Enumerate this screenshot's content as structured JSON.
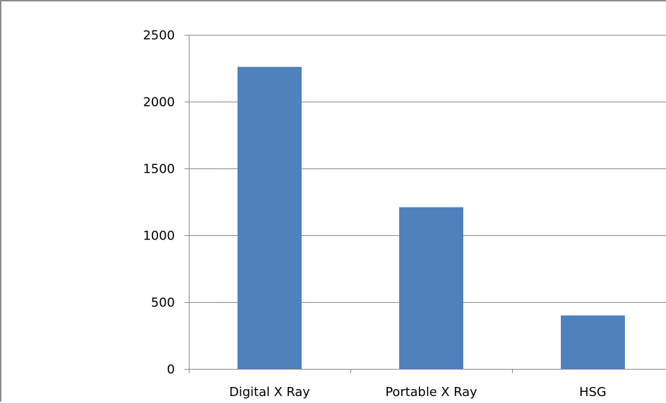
{
  "chart_data": {
    "type": "bar",
    "categories": [
      "Digital X Ray",
      "Portable X Ray",
      "HSG"
    ],
    "values": [
      2260,
      1210,
      400
    ],
    "title": "",
    "xlabel": "",
    "ylabel": "",
    "ylim": [
      0,
      2500
    ],
    "yticks": [
      0,
      500,
      1000,
      1500,
      2000,
      2500
    ],
    "ytick_labels": [
      "0",
      "500",
      "1000",
      "1500",
      "2000",
      "2500"
    ],
    "grid": true,
    "legend": "none"
  },
  "colors": {
    "bar": "#4f81bd",
    "grid": "#868686",
    "axis": "#868686",
    "frame": "#8c8c8c"
  }
}
